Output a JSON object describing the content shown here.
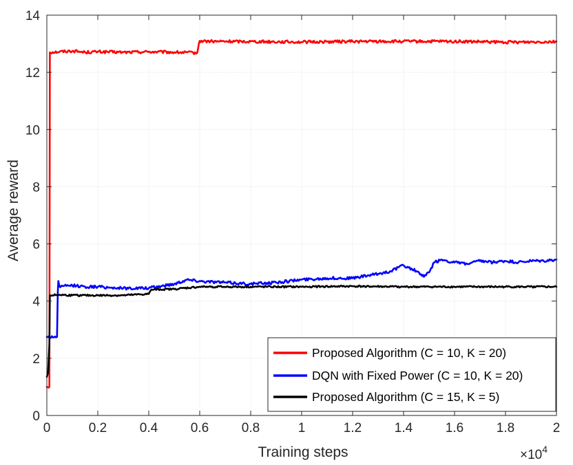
{
  "chart_data": {
    "type": "line",
    "title": "",
    "xlabel": "Training steps",
    "ylabel": "Average reward",
    "x_exponent_base": "×10",
    "x_exponent_power": "4",
    "xlim": [
      0,
      2
    ],
    "ylim": [
      0,
      14
    ],
    "xticks": [
      0,
      0.2,
      0.4,
      0.6,
      0.8,
      1,
      1.2,
      1.4,
      1.6,
      1.8,
      2
    ],
    "xtick_labels": [
      "0",
      "0.2",
      "0.4",
      "0.6",
      "0.8",
      "1",
      "1.2",
      "1.4",
      "1.6",
      "1.8",
      "2"
    ],
    "yticks": [
      0,
      2,
      4,
      6,
      8,
      10,
      12,
      14
    ],
    "ytick_labels": [
      "0",
      "2",
      "4",
      "6",
      "8",
      "10",
      "12",
      "14"
    ],
    "grid": true,
    "legend_position": "lower-right",
    "series": [
      {
        "name": "Proposed Algorithm (C = 10, K = 20)",
        "color": "#ff0000",
        "points": [
          [
            0,
            1.0
          ],
          [
            0.01,
            1.0
          ],
          [
            0.012,
            12.7
          ],
          [
            0.05,
            12.72
          ],
          [
            0.1,
            12.75
          ],
          [
            0.15,
            12.7
          ],
          [
            0.2,
            12.72
          ],
          [
            0.3,
            12.7
          ],
          [
            0.4,
            12.72
          ],
          [
            0.5,
            12.7
          ],
          [
            0.59,
            12.68
          ],
          [
            0.6,
            13.1
          ],
          [
            0.65,
            13.08
          ],
          [
            0.8,
            13.08
          ],
          [
            1.0,
            13.06
          ],
          [
            1.2,
            13.08
          ],
          [
            1.4,
            13.08
          ],
          [
            1.6,
            13.08
          ],
          [
            1.8,
            13.05
          ],
          [
            2.0,
            13.08
          ]
        ]
      },
      {
        "name": "DQN with Fixed Power (C = 10, K = 20)",
        "color": "#0000ff",
        "points": [
          [
            0,
            2.75
          ],
          [
            0.04,
            2.75
          ],
          [
            0.043,
            4.3
          ],
          [
            0.045,
            4.7
          ],
          [
            0.05,
            4.5
          ],
          [
            0.1,
            4.55
          ],
          [
            0.15,
            4.5
          ],
          [
            0.2,
            4.5
          ],
          [
            0.3,
            4.45
          ],
          [
            0.4,
            4.45
          ],
          [
            0.5,
            4.6
          ],
          [
            0.55,
            4.75
          ],
          [
            0.6,
            4.7
          ],
          [
            0.7,
            4.65
          ],
          [
            0.8,
            4.6
          ],
          [
            0.9,
            4.65
          ],
          [
            1.0,
            4.75
          ],
          [
            1.1,
            4.8
          ],
          [
            1.2,
            4.8
          ],
          [
            1.3,
            4.95
          ],
          [
            1.35,
            5.05
          ],
          [
            1.4,
            5.25
          ],
          [
            1.45,
            5.05
          ],
          [
            1.48,
            4.85
          ],
          [
            1.5,
            5.0
          ],
          [
            1.52,
            5.35
          ],
          [
            1.55,
            5.45
          ],
          [
            1.6,
            5.35
          ],
          [
            1.65,
            5.3
          ],
          [
            1.7,
            5.4
          ],
          [
            1.75,
            5.35
          ],
          [
            1.8,
            5.4
          ],
          [
            1.85,
            5.35
          ],
          [
            1.9,
            5.4
          ],
          [
            1.95,
            5.4
          ],
          [
            2.0,
            5.45
          ]
        ]
      },
      {
        "name": "Proposed Algorithm (C = 15, K = 5)",
        "color": "#000000",
        "points": [
          [
            0,
            1.35
          ],
          [
            0.005,
            1.5
          ],
          [
            0.01,
            2.5
          ],
          [
            0.012,
            4.2
          ],
          [
            0.05,
            4.22
          ],
          [
            0.1,
            4.2
          ],
          [
            0.2,
            4.2
          ],
          [
            0.3,
            4.2
          ],
          [
            0.4,
            4.25
          ],
          [
            0.41,
            4.4
          ],
          [
            0.5,
            4.42
          ],
          [
            0.6,
            4.5
          ],
          [
            0.8,
            4.5
          ],
          [
            1.0,
            4.5
          ],
          [
            1.2,
            4.52
          ],
          [
            1.4,
            4.5
          ],
          [
            1.6,
            4.5
          ],
          [
            1.8,
            4.5
          ],
          [
            2.0,
            4.5
          ]
        ]
      }
    ]
  }
}
